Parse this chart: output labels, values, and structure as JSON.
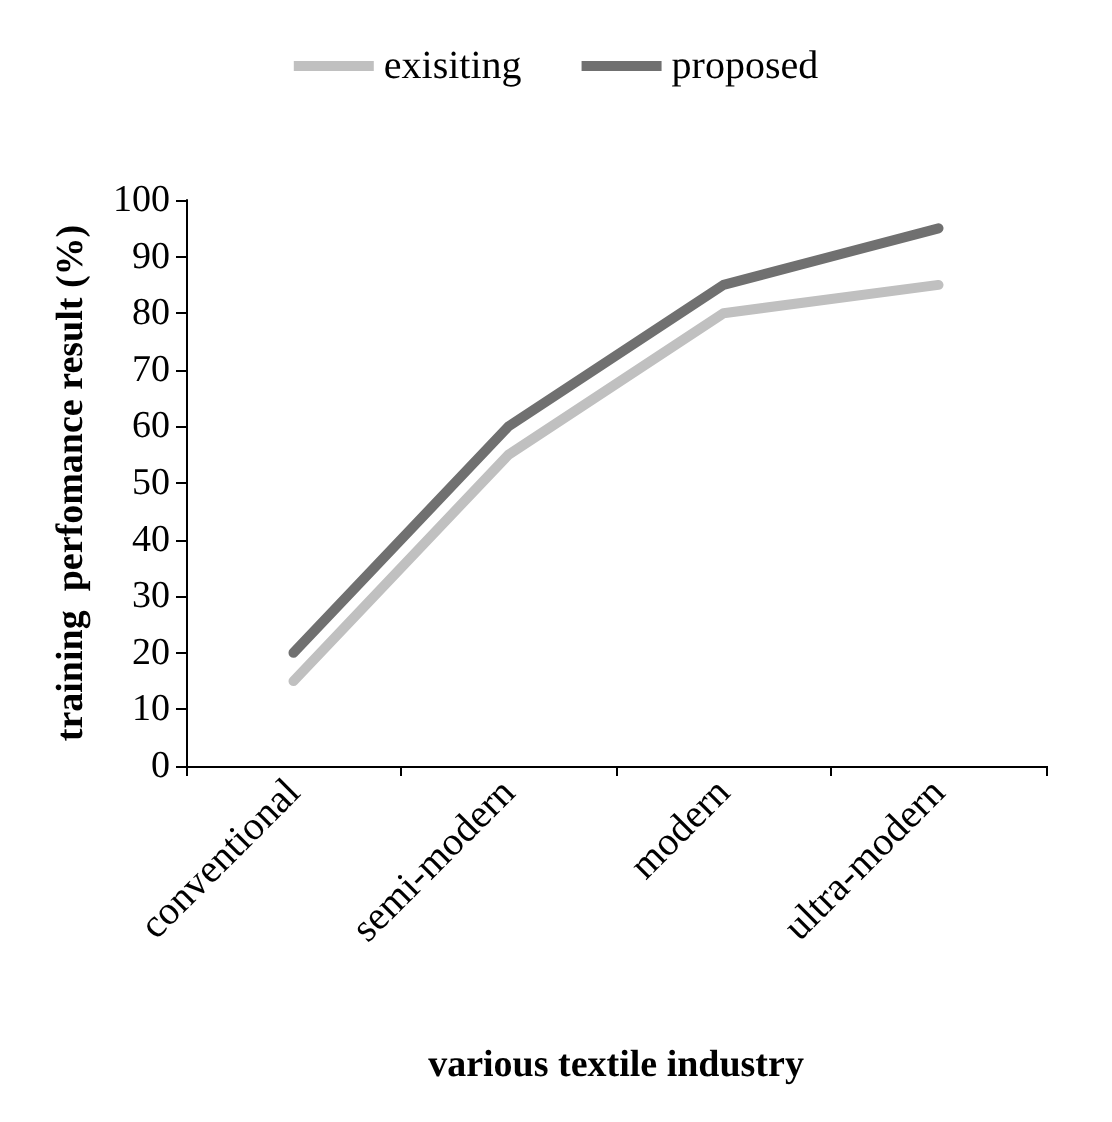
{
  "chart_data": {
    "type": "line",
    "xlabel": "various textile industry",
    "ylabel": "training  perfomance result (%)",
    "categories": [
      "conventional",
      "semi-modern",
      "modern",
      "ultra-modern"
    ],
    "series": [
      {
        "name": "exisiting",
        "color": "#c0c0c0",
        "values": [
          15,
          55,
          80,
          85
        ]
      },
      {
        "name": "proposed",
        "color": "#707070",
        "values": [
          20,
          60,
          85,
          95
        ]
      }
    ],
    "ylim": [
      0,
      100
    ],
    "yticks": [
      0,
      10,
      20,
      30,
      40,
      50,
      60,
      70,
      80,
      90,
      100
    ],
    "grid": false,
    "legend": "top",
    "marker": "none",
    "line_style": "solid"
  }
}
